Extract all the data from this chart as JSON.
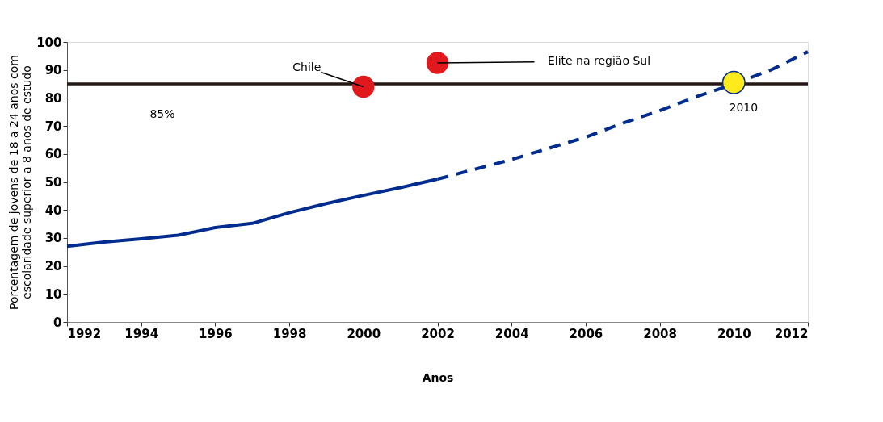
{
  "chart_data": {
    "type": "line",
    "xlabel": "Anos",
    "ylabel": "Porcentagem de jovens de 18 a 24 anos com\nescolaridade superior a 8 anos de estudo",
    "xlim": [
      1992,
      2012
    ],
    "xticks": [
      1992,
      1994,
      1996,
      1998,
      2000,
      2002,
      2004,
      2006,
      2008,
      2010,
      2012
    ],
    "ylim": [
      0,
      100
    ],
    "yticks": [
      0,
      10,
      20,
      30,
      40,
      50,
      60,
      70,
      80,
      90,
      100
    ],
    "grid": false,
    "series": [
      {
        "type": "line",
        "color": "#002b8f",
        "line_style": "solid",
        "x": [
          1992,
          1993,
          1994,
          1995,
          1996,
          1997,
          1998,
          1999,
          2000,
          2001,
          2002
        ],
        "values": [
          27,
          28.5,
          29.7,
          31,
          33.7,
          35.2,
          39,
          42.3,
          45.2,
          48,
          51
        ]
      },
      {
        "type": "line",
        "color": "#002b8f",
        "line_style": "dashed",
        "x": [
          2002,
          2003,
          2004,
          2005,
          2006,
          2007,
          2008,
          2009,
          2010,
          2011,
          2012
        ],
        "values": [
          51,
          54.5,
          58,
          62,
          66,
          71,
          75.5,
          80.5,
          85,
          90,
          96.5
        ]
      },
      {
        "type": "scatter",
        "color": "#e2191c",
        "marker": "circle",
        "x": [
          2000,
          2002
        ],
        "values": [
          84,
          92.5
        ]
      },
      {
        "type": "scatter",
        "color": "#ffea1c",
        "marker": "circle",
        "x": [
          2010
        ],
        "values": [
          85.5
        ]
      }
    ],
    "ref_lines": [
      {
        "axis": "y",
        "value": 85,
        "label": "85%",
        "color": "#231815",
        "line_style": "solid"
      }
    ],
    "annotations": [
      {
        "text": "Chile",
        "x": 2000,
        "y": 84
      },
      {
        "text": "Elite na região Sul",
        "x": 2002,
        "y": 92.5
      },
      {
        "text": "2010",
        "x": 2010,
        "y": 85.5
      }
    ]
  }
}
